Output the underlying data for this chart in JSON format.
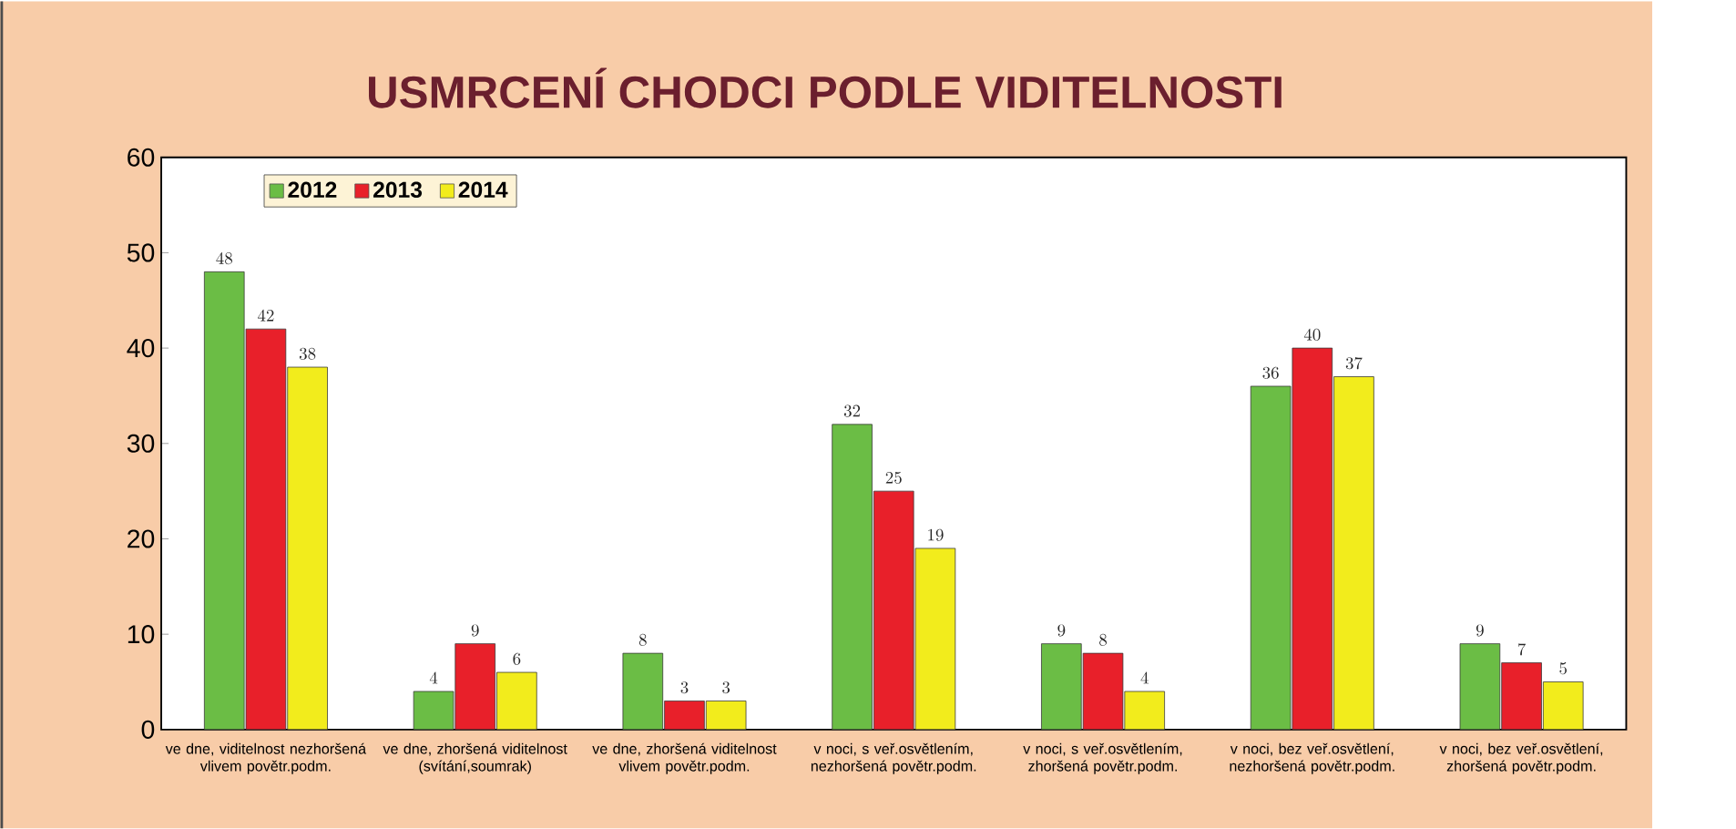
{
  "chart_data": {
    "type": "bar",
    "title": "USMRCENÍ CHODCI PODLE VIDITELNOSTI",
    "categories": [
      "ve dne, viditelnost nezhoršená vlivem povětr.podm.",
      "ve dne, zhoršená viditelnost (svítání,soumrak)",
      "ve dne, zhoršená viditelnost vlivem povětr.podm.",
      "v noci, s veř.osvětlením, nezhoršená povětr.podm.",
      "v noci, s veř.osvětlením, zhoršená povětr.podm.",
      "v noci, bez veř.osvětlení, nezhoršená povětr.podm.",
      "v noci, bez veř.osvětlení, zhoršená povětr.podm."
    ],
    "series": [
      {
        "name": "2012",
        "color": "#6bbd45",
        "values": [
          48,
          4,
          8,
          32,
          9,
          36,
          9
        ]
      },
      {
        "name": "2013",
        "color": "#e8202a",
        "values": [
          42,
          9,
          3,
          25,
          8,
          40,
          7
        ]
      },
      {
        "name": "2014",
        "color": "#f2ec1c",
        "values": [
          38,
          6,
          3,
          19,
          4,
          37,
          5
        ]
      }
    ],
    "ylim": [
      0,
      60
    ],
    "yticks": [
      0,
      10,
      20,
      30,
      40,
      50,
      60
    ],
    "data_labels": true,
    "legend": "top left",
    "grid": false
  }
}
